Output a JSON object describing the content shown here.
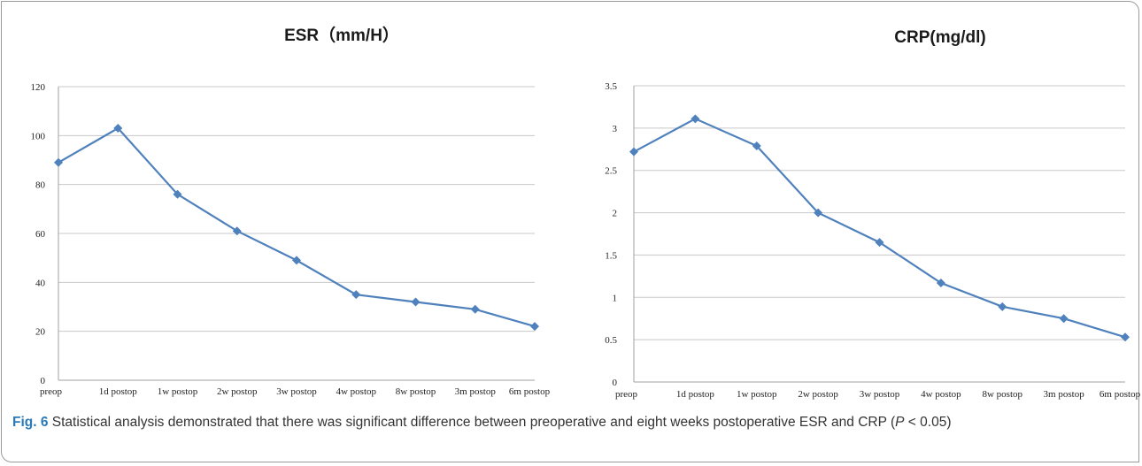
{
  "chart_data": [
    {
      "type": "line",
      "title": "ESR（mm/H）",
      "categories": [
        "preop",
        "1d postop",
        "1w postop",
        "2w postop",
        "3w postop",
        "4w postop",
        "8w postop",
        "3m postop",
        "6m postop"
      ],
      "series": [
        {
          "values": [
            89,
            103,
            76,
            61,
            49,
            35,
            32,
            29,
            22
          ]
        }
      ],
      "ylim": [
        0,
        120
      ],
      "yticks": [
        "0",
        "20",
        "40",
        "60",
        "80",
        "100",
        "120"
      ],
      "grid": true,
      "marker": "diamond",
      "color": "#4f81bd"
    },
    {
      "type": "line",
      "title": "CRP(mg/dl)",
      "categories": [
        "preop",
        "1d postop",
        "1w postop",
        "2w postop",
        "3w postop",
        "4w postop",
        "8w postop",
        "3m postop",
        "6m postop"
      ],
      "series": [
        {
          "values": [
            2.72,
            3.11,
            2.79,
            2.0,
            1.65,
            1.17,
            0.89,
            0.75,
            0.53
          ]
        }
      ],
      "ylim": [
        0,
        3.5
      ],
      "yticks": [
        "0",
        "0.5",
        "1",
        "1.5",
        "2",
        "2.5",
        "3",
        "3.5"
      ],
      "grid": true,
      "marker": "diamond",
      "color": "#4f81bd"
    }
  ],
  "caption": {
    "label": "Fig. 6",
    "text_before_p": " Statistical analysis demonstrated that there was significant difference between preoperative and eight weeks postoperative ESR and CRP (",
    "p_symbol": "P",
    "text_after_p": " < 0.05)"
  }
}
